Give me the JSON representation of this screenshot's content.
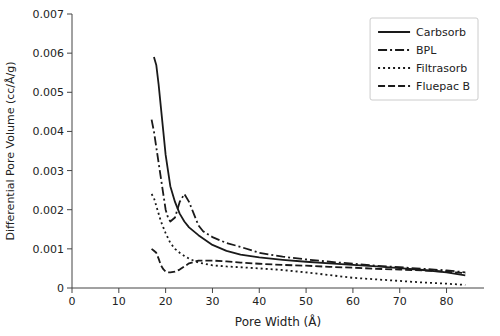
{
  "chart_data": {
    "type": "line",
    "xlabel": "Pore Width (Å)",
    "ylabel": "Differential Pore Volume (cc/Å/g)",
    "xlim": [
      0,
      88
    ],
    "ylim": [
      0,
      0.007
    ],
    "xticks": [
      0,
      10,
      20,
      30,
      40,
      50,
      60,
      70,
      80
    ],
    "yticks": [
      0,
      0.001,
      0.002,
      0.003,
      0.004,
      0.005,
      0.006,
      0.007
    ],
    "color": "#1a1a1a",
    "legend": "upper right",
    "grid": false,
    "series": [
      {
        "name": "Carbsorb",
        "line_style": "solid",
        "x": [
          17.5,
          18.0,
          18.5,
          19.0,
          19.5,
          20.0,
          21.0,
          22.0,
          23.0,
          24.0,
          25.0,
          27.0,
          30.0,
          33.0,
          36.0,
          40.0,
          45.0,
          50.0,
          55.0,
          60.0,
          65.0,
          70.0,
          75.0,
          80.0,
          84.0
        ],
        "values": [
          0.0059,
          0.0057,
          0.0052,
          0.0046,
          0.004,
          0.0034,
          0.0026,
          0.0022,
          0.0019,
          0.0017,
          0.00155,
          0.00135,
          0.0011,
          0.00095,
          0.00085,
          0.00078,
          0.00072,
          0.00067,
          0.00063,
          0.00059,
          0.00055,
          0.00051,
          0.00046,
          0.0004,
          0.00032
        ]
      },
      {
        "name": "BPL",
        "line_style": "dashdot",
        "x": [
          17.0,
          17.5,
          18.0,
          18.5,
          19.0,
          19.5,
          20.0,
          20.5,
          21.0,
          22.0,
          23.0,
          24.0,
          25.0,
          26.0,
          27.0,
          28.0,
          30.0,
          33.0,
          36.0,
          40.0,
          45.0,
          50.0,
          55.0,
          60.0,
          65.0,
          70.0,
          75.0,
          80.0,
          84.0
        ],
        "values": [
          0.0043,
          0.004,
          0.0036,
          0.0032,
          0.0028,
          0.0024,
          0.002,
          0.0018,
          0.0017,
          0.0018,
          0.0022,
          0.0024,
          0.0022,
          0.0019,
          0.0016,
          0.00145,
          0.0013,
          0.00115,
          0.00105,
          0.0009,
          0.0008,
          0.00073,
          0.00067,
          0.00062,
          0.00057,
          0.00053,
          0.00049,
          0.00045,
          0.0004
        ]
      },
      {
        "name": "Filtrasorb",
        "line_style": "dotted",
        "x": [
          17.0,
          17.5,
          18.0,
          18.5,
          19.0,
          19.5,
          20.0,
          21.0,
          22.0,
          23.0,
          24.0,
          25.0,
          27.0,
          30.0,
          33.0,
          36.0,
          40.0,
          45.0,
          50.0,
          55.0,
          60.0,
          65.0,
          70.0,
          75.0,
          80.0,
          84.0
        ],
        "values": [
          0.0024,
          0.0023,
          0.0021,
          0.0019,
          0.0017,
          0.00155,
          0.0014,
          0.00115,
          0.001,
          0.0009,
          0.00082,
          0.00075,
          0.00065,
          0.00058,
          0.00055,
          0.00053,
          0.0005,
          0.00046,
          0.0004,
          0.00033,
          0.00026,
          0.00022,
          0.00018,
          0.00014,
          0.00011,
          8e-05
        ]
      },
      {
        "name": "Fluepac B",
        "line_style": "dashed",
        "x": [
          17.0,
          17.5,
          18.0,
          18.5,
          19.0,
          19.5,
          20.0,
          20.5,
          21.0,
          22.0,
          23.0,
          24.0,
          25.0,
          27.0,
          30.0,
          33.0,
          36.0,
          40.0,
          45.0,
          50.0,
          55.0,
          60.0,
          65.0,
          70.0,
          75.0,
          80.0,
          84.0
        ],
        "values": [
          0.001,
          0.00095,
          0.0009,
          0.00075,
          0.00058,
          0.00048,
          0.00042,
          0.0004,
          0.0004,
          0.00042,
          0.00047,
          0.00055,
          0.00063,
          0.0007,
          0.0007,
          0.00068,
          0.00065,
          0.00062,
          0.00059,
          0.00057,
          0.00054,
          0.00052,
          0.00049,
          0.00047,
          0.00045,
          0.00042,
          0.00038
        ]
      }
    ]
  }
}
